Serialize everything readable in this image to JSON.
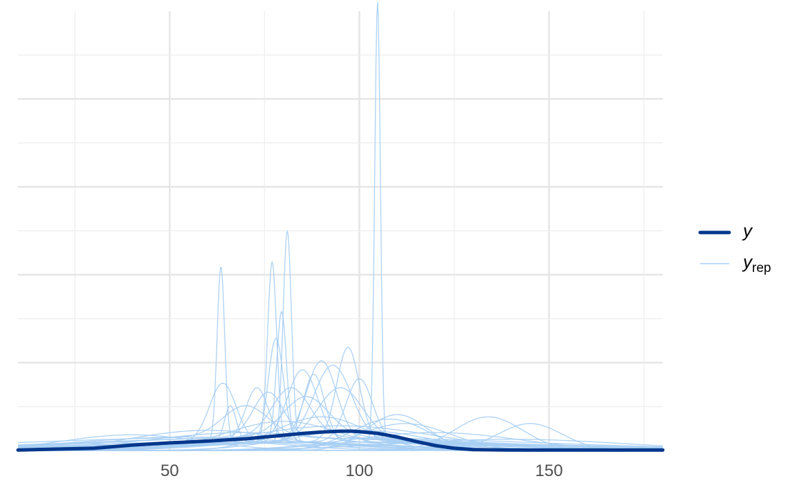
{
  "colors": {
    "y": "#03378c",
    "yrep": "#a8cff3",
    "grid_major": "#e6e6e6",
    "grid_minor": "#efefef",
    "background": "#ffffff"
  },
  "chart_data": {
    "type": "line",
    "title": "",
    "xlabel": "",
    "ylabel": "",
    "xlim": [
      10,
      180
    ],
    "ylim": [
      0,
      0.098
    ],
    "x_ticks": [
      50,
      100,
      150
    ],
    "x_tick_labels": [
      "50",
      "100",
      "150"
    ],
    "grid": true,
    "y_tick_labels_shown": false,
    "legend": {
      "position": "right",
      "entries": [
        {
          "key": "y",
          "label": "y"
        },
        {
          "key": "yrep",
          "label": "y",
          "subscript": "rep"
        }
      ]
    },
    "series": [
      {
        "key": "y",
        "name": "y",
        "x": [
          10,
          20,
          30,
          40,
          50,
          60,
          70,
          80,
          85,
          90,
          95,
          98,
          100,
          105,
          110,
          115,
          120,
          125,
          130,
          140,
          150,
          160,
          170,
          180
        ],
        "y": [
          0.0001,
          0.0003,
          0.0005,
          0.0012,
          0.0017,
          0.0021,
          0.0026,
          0.0034,
          0.0038,
          0.0041,
          0.0043,
          0.0043,
          0.0042,
          0.0038,
          0.003,
          0.002,
          0.0011,
          0.0005,
          0.0002,
          0.0001,
          0.0001,
          0.0001,
          0.0001,
          0.0001
        ]
      }
    ],
    "yrep": [
      {
        "kind": "spike",
        "center": 104.8,
        "sd": 0.75,
        "height": 0.098,
        "base": 0.002
      },
      {
        "kind": "spike",
        "center": 63.5,
        "sd": 1.0,
        "height": 0.039,
        "base": 0.002
      },
      {
        "kind": "spike",
        "center": 77.0,
        "sd": 1.2,
        "height": 0.04,
        "base": 0.002
      },
      {
        "kind": "spike",
        "center": 81.0,
        "sd": 1.1,
        "height": 0.047,
        "base": 0.002
      },
      {
        "kind": "spike",
        "center": 79.5,
        "sd": 1.3,
        "height": 0.029,
        "base": 0.002
      },
      {
        "kind": "spike",
        "center": 78.0,
        "sd": 2.0,
        "height": 0.023,
        "base": 0.002
      },
      {
        "kind": "spike",
        "center": 97.0,
        "sd": 3.0,
        "height": 0.021,
        "base": 0.002
      },
      {
        "kind": "spike",
        "center": 90.0,
        "sd": 4.0,
        "height": 0.018,
        "base": 0.002
      },
      {
        "kind": "spike",
        "center": 85.0,
        "sd": 4.0,
        "height": 0.016,
        "base": 0.002
      },
      {
        "kind": "spike",
        "center": 93.0,
        "sd": 5.0,
        "height": 0.017,
        "base": 0.002
      },
      {
        "kind": "spike",
        "center": 100.0,
        "sd": 3.5,
        "height": 0.014,
        "base": 0.002
      },
      {
        "kind": "spike",
        "center": 64.0,
        "sd": 3.5,
        "height": 0.013,
        "base": 0.002
      },
      {
        "kind": "spike",
        "center": 88.0,
        "sd": 2.8,
        "height": 0.015,
        "base": 0.002
      },
      {
        "kind": "spike",
        "center": 73.0,
        "sd": 3.0,
        "height": 0.012,
        "base": 0.002
      },
      {
        "kind": "spike",
        "center": 66.0,
        "sd": 1.5,
        "height": 0.008,
        "base": 0.002
      },
      {
        "kind": "spike",
        "center": 76.0,
        "sd": 4.0,
        "height": 0.01,
        "base": 0.003
      },
      {
        "kind": "spike",
        "center": 95.0,
        "sd": 6.0,
        "height": 0.012,
        "base": 0.002
      },
      {
        "kind": "spike",
        "center": 82.0,
        "sd": 5.0,
        "height": 0.011,
        "base": 0.003
      },
      {
        "kind": "spike",
        "center": 86.0,
        "sd": 6.0,
        "height": 0.009,
        "base": 0.003
      },
      {
        "kind": "spike",
        "center": 70.0,
        "sd": 6.0,
        "height": 0.007,
        "base": 0.003
      },
      {
        "kind": "wide",
        "center": 110.0,
        "sd": 8.0,
        "height": 0.008
      },
      {
        "kind": "wide",
        "center": 108.0,
        "sd": 10.0,
        "height": 0.007
      },
      {
        "kind": "wide",
        "center": 134.0,
        "sd": 9.0,
        "height": 0.0075
      },
      {
        "kind": "wide",
        "center": 145.0,
        "sd": 8.5,
        "height": 0.006
      },
      {
        "kind": "wide",
        "center": 112.0,
        "sd": 12.0,
        "height": 0.006
      },
      {
        "kind": "wide",
        "center": 40.0,
        "sd": 18.0,
        "height": 0.0035
      },
      {
        "kind": "wide",
        "center": 60.0,
        "sd": 20.0,
        "height": 0.0045
      },
      {
        "kind": "wide",
        "center": 95.0,
        "sd": 25.0,
        "height": 0.0055
      },
      {
        "kind": "wide",
        "center": 120.0,
        "sd": 22.0,
        "height": 0.004
      },
      {
        "kind": "wide",
        "center": 80.0,
        "sd": 15.0,
        "height": 0.0065
      },
      {
        "kind": "wide",
        "center": 100.0,
        "sd": 18.0,
        "height": 0.0045
      },
      {
        "kind": "wide",
        "center": 70.0,
        "sd": 25.0,
        "height": 0.004
      },
      {
        "kind": "wide",
        "center": 140.0,
        "sd": 30.0,
        "height": 0.0025
      },
      {
        "kind": "wide",
        "center": 90.0,
        "sd": 12.0,
        "height": 0.0075
      },
      {
        "kind": "wide",
        "center": 55.0,
        "sd": 30.0,
        "height": 0.003
      }
    ]
  }
}
